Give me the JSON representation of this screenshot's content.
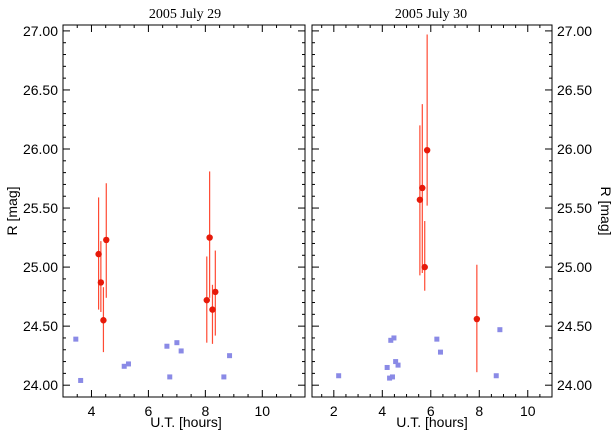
{
  "chart_data": [
    {
      "type": "scatter",
      "title": "2005 July 29",
      "xlabel": "U.T. [hours]",
      "ylabel": "R [mag]",
      "xlim": [
        3,
        11.5
      ],
      "ylim": [
        23.9,
        27.05
      ],
      "xticks": [
        4,
        6,
        8,
        10
      ],
      "xtick_labels": [
        "4",
        "6",
        "8",
        "10"
      ],
      "yticks": [
        24.0,
        24.5,
        25.0,
        25.5,
        26.0,
        26.5,
        27.0
      ],
      "ytick_labels": [
        "24.00",
        "24.50",
        "25.00",
        "25.50",
        "26.00",
        "26.50",
        "27.00"
      ],
      "series": [
        {
          "color": "#e61a0a",
          "marker": "circle",
          "x": [
            4.25,
            4.33,
            4.42,
            4.52,
            8.05,
            8.15,
            8.25,
            8.35
          ],
          "y": [
            25.11,
            24.87,
            24.55,
            25.23,
            24.72,
            25.25,
            24.64,
            24.79
          ],
          "err_low": [
            0.47,
            0.25,
            0.27,
            0.49,
            0.36,
            0.51,
            0.29,
            0.37
          ],
          "err_high": [
            0.48,
            0.35,
            0.28,
            0.48,
            0.37,
            0.56,
            0.21,
            0.35
          ]
        },
        {
          "color": "#8a8ae6",
          "marker": "square",
          "x": [
            3.45,
            3.62,
            5.15,
            5.3,
            6.65,
            6.75,
            7.0,
            7.15,
            8.65,
            8.85
          ],
          "y": [
            24.39,
            24.04,
            24.16,
            24.18,
            24.33,
            24.07,
            24.36,
            24.29,
            24.07,
            24.25
          ]
        }
      ]
    },
    {
      "type": "scatter",
      "title": "2005 July 30",
      "xlabel": "U.T. [hours]",
      "ylabel": "R [mag]",
      "xlim": [
        1.1,
        11
      ],
      "ylim": [
        23.9,
        27.05
      ],
      "xticks": [
        2,
        4,
        6,
        8,
        10
      ],
      "xtick_labels": [
        "2",
        "4",
        "6",
        "8",
        "10"
      ],
      "yticks": [
        24.0,
        24.5,
        25.0,
        25.5,
        26.0,
        26.5,
        27.0
      ],
      "ytick_labels": [
        "24.00",
        "24.50",
        "25.00",
        "25.50",
        "26.00",
        "26.50",
        "27.00"
      ],
      "series": [
        {
          "color": "#e61a0a",
          "marker": "circle",
          "x": [
            5.55,
            5.65,
            5.75,
            5.85,
            7.9
          ],
          "y": [
            25.57,
            25.67,
            25.0,
            25.99,
            24.56
          ],
          "err_low": [
            0.64,
            0.72,
            0.2,
            0.47,
            0.45
          ],
          "err_high": [
            0.63,
            0.71,
            0.39,
            0.98,
            0.46
          ]
        },
        {
          "color": "#8a8ae6",
          "marker": "square",
          "x": [
            2.2,
            4.2,
            4.3,
            4.35,
            4.42,
            4.48,
            4.55,
            4.65,
            6.25,
            6.4,
            8.7,
            8.85
          ],
          "y": [
            24.08,
            24.15,
            24.06,
            24.38,
            24.07,
            24.4,
            24.2,
            24.17,
            24.39,
            24.28,
            24.08,
            24.47
          ]
        }
      ]
    }
  ]
}
